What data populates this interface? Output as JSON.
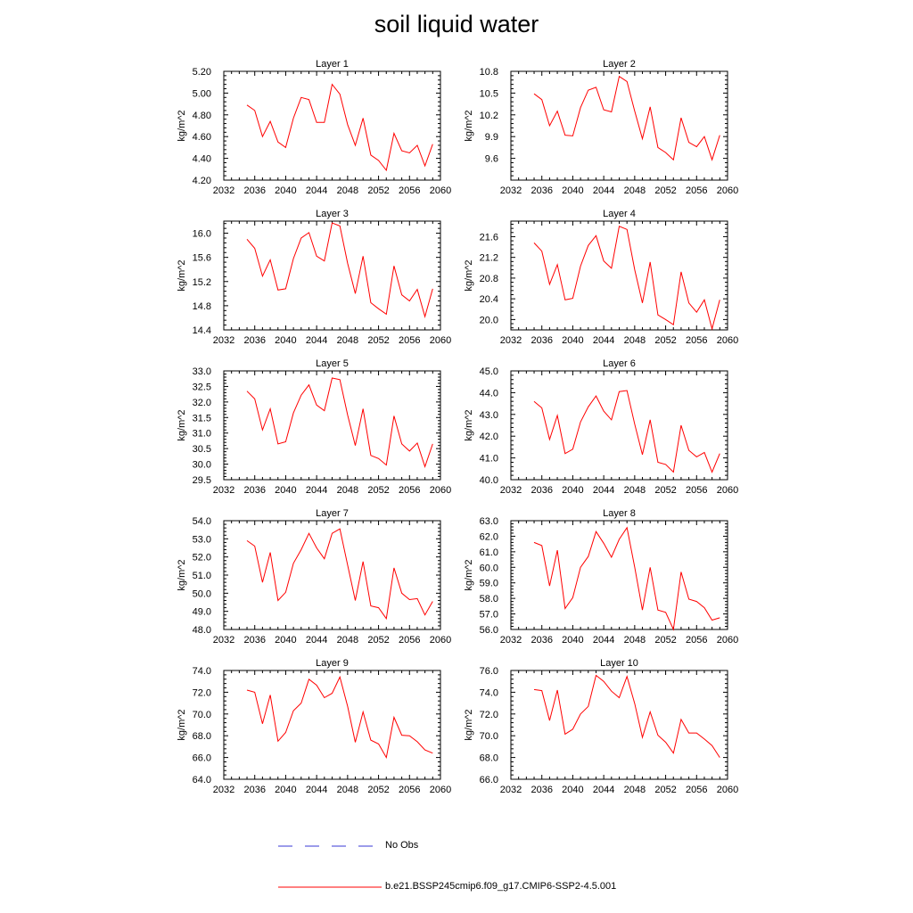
{
  "title": "soil liquid water",
  "colors": {
    "model": "#ff0000",
    "obs": "#3a3ad6",
    "axis": "#000000"
  },
  "legend": {
    "obs_label": "No Obs",
    "model_label": "b.e21.BSSP245cmip6.f09_g17.CMIP6-SSP2-4.5.001"
  },
  "chart_data": [
    {
      "type": "line",
      "title": "Layer 1",
      "ylabel": "kg/m^2",
      "xlim": [
        2032,
        2060
      ],
      "ylim": [
        4.2,
        5.2
      ],
      "xticks": [
        "2032",
        "2036",
        "2040",
        "2044",
        "2048",
        "2052",
        "2056",
        "2060"
      ],
      "yticks": [
        "4.20",
        "4.40",
        "4.60",
        "4.80",
        "5.00",
        "5.20"
      ],
      "x": [
        2035,
        2036,
        2037,
        2038,
        2039,
        2040,
        2041,
        2042,
        2043,
        2044,
        2045,
        2046,
        2047,
        2048,
        2049,
        2050,
        2051,
        2052,
        2053,
        2054,
        2055,
        2056,
        2057,
        2058,
        2059
      ],
      "series": [
        {
          "values": [
            4.89,
            4.84,
            4.6,
            4.74,
            4.55,
            4.5,
            4.77,
            4.96,
            4.94,
            4.73,
            4.73,
            5.08,
            4.99,
            4.71,
            4.52,
            4.77,
            4.43,
            4.38,
            4.29,
            4.63,
            4.47,
            4.45,
            4.52,
            4.33,
            4.53
          ]
        }
      ]
    },
    {
      "type": "line",
      "title": "Layer 2",
      "ylabel": "kg/m^2",
      "xlim": [
        2032,
        2060
      ],
      "ylim": [
        9.3,
        10.8
      ],
      "xticks": [
        "2032",
        "2036",
        "2040",
        "2044",
        "2048",
        "2052",
        "2056",
        "2060"
      ],
      "yticks": [
        "9.6",
        "9.9",
        "10.2",
        "10.5",
        "10.8"
      ],
      "x": [
        2035,
        2036,
        2037,
        2038,
        2039,
        2040,
        2041,
        2042,
        2043,
        2044,
        2045,
        2046,
        2047,
        2048,
        2049,
        2050,
        2051,
        2052,
        2053,
        2054,
        2055,
        2056,
        2057,
        2058,
        2059
      ],
      "series": [
        {
          "values": [
            10.49,
            10.41,
            10.05,
            10.25,
            9.92,
            9.91,
            10.3,
            10.54,
            10.58,
            10.27,
            10.24,
            10.73,
            10.66,
            10.25,
            9.87,
            10.31,
            9.75,
            9.68,
            9.58,
            10.16,
            9.82,
            9.76,
            9.9,
            9.58,
            9.92
          ]
        }
      ]
    },
    {
      "type": "line",
      "title": "Layer 3",
      "ylabel": "kg/m^2",
      "xlim": [
        2032,
        2060
      ],
      "ylim": [
        14.4,
        16.2
      ],
      "xticks": [
        "2032",
        "2036",
        "2040",
        "2044",
        "2048",
        "2052",
        "2056",
        "2060"
      ],
      "yticks": [
        "14.4",
        "14.8",
        "15.2",
        "15.6",
        "16.0"
      ],
      "x": [
        2035,
        2036,
        2037,
        2038,
        2039,
        2040,
        2041,
        2042,
        2043,
        2044,
        2045,
        2046,
        2047,
        2048,
        2049,
        2050,
        2051,
        2052,
        2053,
        2054,
        2055,
        2056,
        2057,
        2058,
        2059
      ],
      "series": [
        {
          "values": [
            15.9,
            15.75,
            15.29,
            15.56,
            15.06,
            15.08,
            15.58,
            15.92,
            16.01,
            15.62,
            15.54,
            16.17,
            16.12,
            15.5,
            15.0,
            15.62,
            14.85,
            14.75,
            14.66,
            15.46,
            14.98,
            14.88,
            15.07,
            14.62,
            15.08
          ]
        }
      ]
    },
    {
      "type": "line",
      "title": "Layer 4",
      "ylabel": "kg/m^2",
      "xlim": [
        2032,
        2060
      ],
      "ylim": [
        19.8,
        21.9
      ],
      "xticks": [
        "2032",
        "2036",
        "2040",
        "2044",
        "2048",
        "2052",
        "2056",
        "2060"
      ],
      "yticks": [
        "20.0",
        "20.4",
        "20.8",
        "21.2",
        "21.6"
      ],
      "x": [
        2035,
        2036,
        2037,
        2038,
        2039,
        2040,
        2041,
        2042,
        2043,
        2044,
        2045,
        2046,
        2047,
        2048,
        2049,
        2050,
        2051,
        2052,
        2053,
        2054,
        2055,
        2056,
        2057,
        2058,
        2059
      ],
      "series": [
        {
          "values": [
            21.48,
            21.32,
            20.68,
            21.06,
            20.38,
            20.41,
            21.03,
            21.43,
            21.62,
            21.13,
            20.99,
            21.8,
            21.74,
            20.96,
            20.32,
            21.11,
            20.09,
            20.0,
            19.9,
            20.92,
            20.32,
            20.14,
            20.38,
            19.82,
            20.38
          ]
        }
      ]
    },
    {
      "type": "line",
      "title": "Layer 5",
      "ylabel": "kg/m^2",
      "xlim": [
        2032,
        2060
      ],
      "ylim": [
        29.5,
        33.0
      ],
      "xticks": [
        "2032",
        "2036",
        "2040",
        "2044",
        "2048",
        "2052",
        "2056",
        "2060"
      ],
      "yticks": [
        "29.5",
        "30.0",
        "30.5",
        "31.0",
        "31.5",
        "32.0",
        "32.5",
        "33.0"
      ],
      "x": [
        2035,
        2036,
        2037,
        2038,
        2039,
        2040,
        2041,
        2042,
        2043,
        2044,
        2045,
        2046,
        2047,
        2048,
        2049,
        2050,
        2051,
        2052,
        2053,
        2054,
        2055,
        2056,
        2057,
        2058,
        2059
      ],
      "series": [
        {
          "values": [
            32.35,
            32.1,
            31.1,
            31.78,
            30.65,
            30.72,
            31.65,
            32.22,
            32.55,
            31.9,
            31.72,
            32.77,
            32.72,
            31.58,
            30.6,
            31.78,
            30.28,
            30.18,
            29.97,
            31.55,
            30.65,
            30.42,
            30.68,
            29.92,
            30.65
          ]
        }
      ]
    },
    {
      "type": "line",
      "title": "Layer 6",
      "ylabel": "kg/m^2",
      "xlim": [
        2032,
        2060
      ],
      "ylim": [
        40.0,
        45.0
      ],
      "xticks": [
        "2032",
        "2036",
        "2040",
        "2044",
        "2048",
        "2052",
        "2056",
        "2060"
      ],
      "yticks": [
        "40.0",
        "41.0",
        "42.0",
        "43.0",
        "44.0",
        "45.0"
      ],
      "x": [
        2035,
        2036,
        2037,
        2038,
        2039,
        2040,
        2041,
        2042,
        2043,
        2044,
        2045,
        2046,
        2047,
        2048,
        2049,
        2050,
        2051,
        2052,
        2053,
        2054,
        2055,
        2056,
        2057,
        2058,
        2059
      ],
      "series": [
        {
          "values": [
            43.6,
            43.3,
            41.85,
            42.95,
            41.2,
            41.4,
            42.65,
            43.35,
            43.85,
            43.15,
            42.75,
            44.05,
            44.1,
            42.55,
            41.15,
            42.75,
            40.8,
            40.7,
            40.35,
            42.5,
            41.35,
            41.05,
            41.25,
            40.35,
            41.2
          ]
        }
      ]
    },
    {
      "type": "line",
      "title": "Layer 7",
      "ylabel": "kg/m^2",
      "xlim": [
        2032,
        2060
      ],
      "ylim": [
        48.0,
        54.0
      ],
      "xticks": [
        "2032",
        "2036",
        "2040",
        "2044",
        "2048",
        "2052",
        "2056",
        "2060"
      ],
      "yticks": [
        "48.0",
        "49.0",
        "50.0",
        "51.0",
        "52.0",
        "53.0",
        "54.0"
      ],
      "x": [
        2035,
        2036,
        2037,
        2038,
        2039,
        2040,
        2041,
        2042,
        2043,
        2044,
        2045,
        2046,
        2047,
        2048,
        2049,
        2050,
        2051,
        2052,
        2053,
        2054,
        2055,
        2056,
        2057,
        2058,
        2059
      ],
      "series": [
        {
          "values": [
            52.9,
            52.6,
            50.6,
            52.25,
            49.6,
            50.05,
            51.65,
            52.4,
            53.3,
            52.5,
            51.9,
            53.3,
            53.55,
            51.55,
            49.6,
            51.75,
            49.3,
            49.2,
            48.6,
            51.4,
            50.0,
            49.65,
            49.7,
            48.8,
            49.55
          ]
        }
      ]
    },
    {
      "type": "line",
      "title": "Layer 8",
      "ylabel": "kg/m^2",
      "xlim": [
        2032,
        2060
      ],
      "ylim": [
        56.0,
        63.0
      ],
      "xticks": [
        "2032",
        "2036",
        "2040",
        "2044",
        "2048",
        "2052",
        "2056",
        "2060"
      ],
      "yticks": [
        "56.0",
        "57.0",
        "58.0",
        "59.0",
        "60.0",
        "61.0",
        "62.0",
        "63.0"
      ],
      "x": [
        2035,
        2036,
        2037,
        2038,
        2039,
        2040,
        2041,
        2042,
        2043,
        2044,
        2045,
        2046,
        2047,
        2048,
        2049,
        2050,
        2051,
        2052,
        2053,
        2054,
        2055,
        2056,
        2057,
        2058,
        2059
      ],
      "series": [
        {
          "values": [
            61.6,
            61.4,
            58.8,
            61.1,
            57.35,
            58.05,
            60.0,
            60.7,
            62.3,
            61.55,
            60.65,
            61.8,
            62.55,
            60.0,
            57.25,
            60.0,
            57.25,
            57.1,
            56.0,
            59.7,
            57.95,
            57.8,
            57.4,
            56.6,
            56.75
          ]
        }
      ]
    },
    {
      "type": "line",
      "title": "Layer 9",
      "ylabel": "kg/m^2",
      "xlim": [
        2032,
        2060
      ],
      "ylim": [
        64.0,
        74.0
      ],
      "xticks": [
        "2032",
        "2036",
        "2040",
        "2044",
        "2048",
        "2052",
        "2056",
        "2060"
      ],
      "yticks": [
        "64.0",
        "66.0",
        "68.0",
        "70.0",
        "72.0",
        "74.0"
      ],
      "x": [
        2035,
        2036,
        2037,
        2038,
        2039,
        2040,
        2041,
        2042,
        2043,
        2044,
        2045,
        2046,
        2047,
        2048,
        2049,
        2050,
        2051,
        2052,
        2053,
        2054,
        2055,
        2056,
        2057,
        2058,
        2059
      ],
      "series": [
        {
          "values": [
            72.2,
            72.0,
            69.1,
            71.75,
            67.5,
            68.3,
            70.3,
            71.0,
            73.2,
            72.65,
            71.5,
            71.9,
            73.4,
            70.7,
            67.4,
            70.2,
            67.6,
            67.25,
            66.0,
            69.7,
            68.05,
            68.0,
            67.45,
            66.7,
            66.4
          ]
        }
      ]
    },
    {
      "type": "line",
      "title": "Layer 10",
      "ylabel": "kg/m^2",
      "xlim": [
        2032,
        2060
      ],
      "ylim": [
        66.0,
        76.0
      ],
      "xticks": [
        "2032",
        "2036",
        "2040",
        "2044",
        "2048",
        "2052",
        "2056",
        "2060"
      ],
      "yticks": [
        "66.0",
        "68.0",
        "70.0",
        "72.0",
        "74.0",
        "76.0"
      ],
      "x": [
        2035,
        2036,
        2037,
        2038,
        2039,
        2040,
        2041,
        2042,
        2043,
        2044,
        2045,
        2046,
        2047,
        2048,
        2049,
        2050,
        2051,
        2052,
        2053,
        2054,
        2055,
        2056,
        2057,
        2058,
        2059
      ],
      "series": [
        {
          "values": [
            74.25,
            74.15,
            71.4,
            74.2,
            70.15,
            70.6,
            72.0,
            72.7,
            75.55,
            75.0,
            74.1,
            73.5,
            75.45,
            72.95,
            69.85,
            72.2,
            70.05,
            69.4,
            68.4,
            71.5,
            70.25,
            70.25,
            69.7,
            69.1,
            68.0
          ]
        }
      ]
    }
  ]
}
